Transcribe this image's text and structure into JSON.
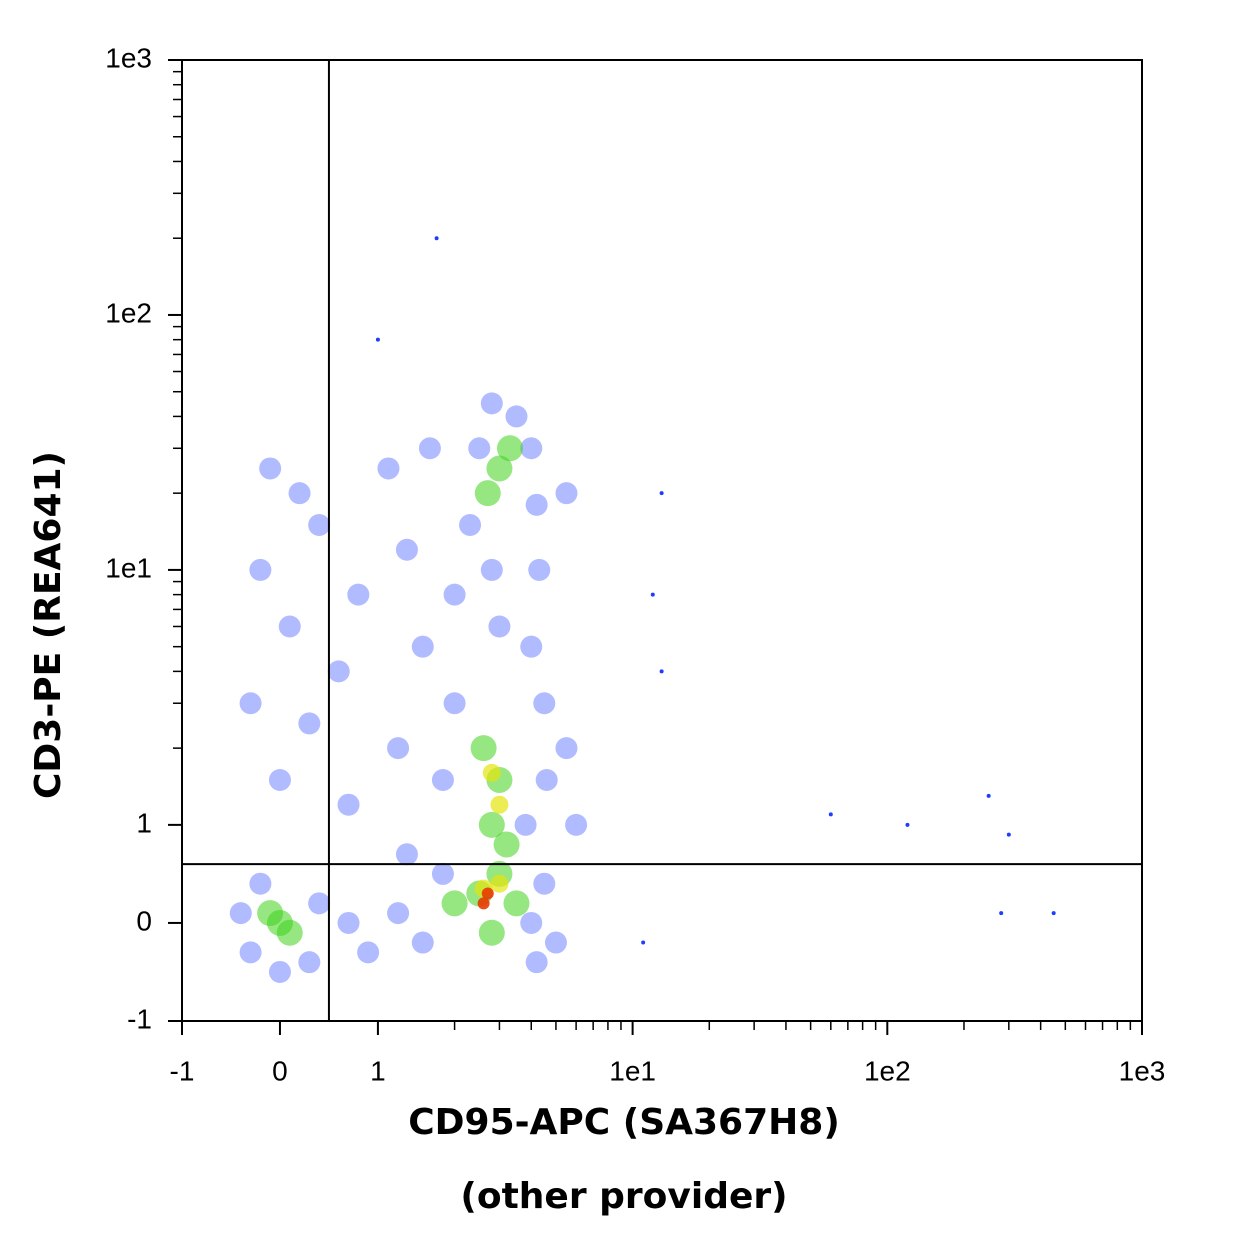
{
  "chart_data": {
    "type": "scatter",
    "scale": "biexponential",
    "xlabel": "CD95-APC (SA367H8)",
    "xlabel_note": "(other provider)",
    "ylabel": "CD3-PE (REA641)",
    "xlim": [
      -1,
      1000
    ],
    "ylim": [
      -1,
      1000
    ],
    "xticks": [
      -1,
      0,
      1,
      {
        "value": 10,
        "label": "1e1"
      },
      {
        "value": 100,
        "label": "1e2"
      },
      {
        "value": 1000,
        "label": "1e3"
      }
    ],
    "yticks": [
      -1,
      0,
      1,
      {
        "value": 10,
        "label": "1e1"
      },
      {
        "value": 100,
        "label": "1e2"
      },
      {
        "value": 1000,
        "label": "1e3"
      }
    ],
    "xminorticks": [
      2,
      3,
      4,
      5,
      6,
      7,
      8,
      9,
      20,
      30,
      40,
      50,
      60,
      70,
      80,
      90,
      200,
      300,
      400,
      500,
      600,
      700,
      800,
      900
    ],
    "yminorticks": [
      2,
      3,
      4,
      5,
      6,
      7,
      8,
      9,
      20,
      30,
      40,
      50,
      60,
      70,
      80,
      90,
      200,
      300,
      400,
      500,
      600,
      700,
      800,
      900
    ],
    "quadrant_x": 0.5,
    "quadrant_y": 0.6,
    "series": [
      {
        "color": "#1f3cff",
        "x": [
          -0.4,
          -0.3,
          0.3,
          0.4,
          0,
          -0.2,
          0.7,
          0.9,
          1.2,
          1.5,
          1.8,
          4,
          4.5,
          5,
          4.2,
          1.3,
          0,
          0.3,
          -0.3,
          0.6,
          0.1,
          -0.2,
          0.4,
          0.2,
          -0.1,
          0.8,
          0.7,
          1.2,
          1.5,
          1.3,
          1.1,
          1.6,
          2,
          2,
          2.3,
          2.5,
          2.8,
          3.5,
          4,
          4.2,
          4.3,
          4,
          4.5,
          4.6,
          3.8,
          5.5,
          5.5,
          6,
          3,
          2.8,
          1.8
        ],
        "y": [
          0.1,
          -0.3,
          -0.4,
          0.2,
          -0.5,
          0.4,
          0,
          -0.3,
          0.1,
          -0.2,
          0.5,
          0,
          0.4,
          -0.2,
          -0.4,
          0.7,
          1.5,
          2.5,
          3,
          4,
          6,
          10,
          15,
          20,
          25,
          8,
          1.2,
          2,
          5,
          12,
          25,
          30,
          3,
          8,
          15,
          30,
          45,
          40,
          30,
          18,
          10,
          5,
          3,
          1.5,
          1,
          2,
          20,
          1,
          6,
          10,
          1.5
        ]
      },
      {
        "color": "#3fd21c",
        "x": [
          0,
          0.1,
          -0.1,
          2.5,
          3,
          2,
          3.5,
          2.8,
          2.8,
          3,
          2.6,
          3.2,
          3,
          2.7,
          3.3
        ],
        "y": [
          0,
          -0.1,
          0.1,
          0.3,
          0.5,
          0.2,
          0.2,
          -0.1,
          1,
          1.5,
          2,
          0.8,
          25,
          20,
          30
        ]
      },
      {
        "color": "#e4e40c",
        "x": [
          2.6,
          3,
          3,
          2.8
        ],
        "y": [
          0.35,
          0.4,
          1.2,
          1.6
        ]
      },
      {
        "color": "#e83a00",
        "x": [
          2.7,
          2.6
        ],
        "y": [
          0.3,
          0.2
        ]
      },
      {
        "color": "#1f3cff",
        "x": [
          1.7,
          1,
          13,
          12,
          13,
          60,
          120,
          250,
          300,
          280,
          450,
          11
        ],
        "y": [
          200,
          80,
          20,
          8,
          4,
          1.1,
          1,
          1.3,
          0.9,
          0.1,
          0.1,
          -0.2
        ]
      }
    ]
  }
}
